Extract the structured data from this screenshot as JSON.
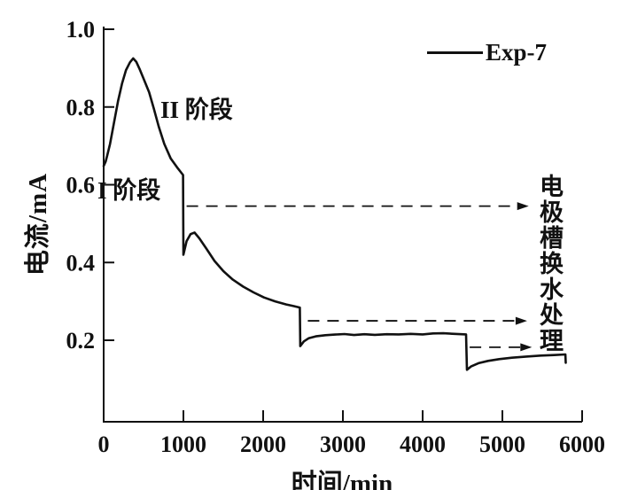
{
  "figure": {
    "background": "#ffffff",
    "ink_color": "#111111",
    "legend": {
      "label": "Exp-7"
    },
    "axes": {
      "xlabel": "时间/min",
      "ylabel": "电流/mA"
    },
    "annotations": {
      "stage1": "I 阶段",
      "stage2": "II 阶段",
      "side_note": "电极槽换水处理"
    }
  },
  "chart_data": {
    "type": "line",
    "title": "",
    "xlabel": "时间/min",
    "ylabel": "电流/mA",
    "xlim": [
      0,
      6000
    ],
    "ylim": [
      0,
      1.0
    ],
    "x_ticks": [
      0,
      1000,
      2000,
      3000,
      4000,
      5000,
      6000
    ],
    "y_ticks": [
      0.2,
      0.4,
      0.6,
      0.8,
      1.0
    ],
    "grid": false,
    "legend_position": "upper-right",
    "series": [
      {
        "name": "Exp-7",
        "color": "#111111",
        "points": [
          [
            0,
            0.648
          ],
          [
            25,
            0.66
          ],
          [
            45,
            0.675
          ],
          [
            80,
            0.705
          ],
          [
            130,
            0.76
          ],
          [
            180,
            0.815
          ],
          [
            230,
            0.86
          ],
          [
            280,
            0.895
          ],
          [
            330,
            0.915
          ],
          [
            370,
            0.925
          ],
          [
            410,
            0.916
          ],
          [
            450,
            0.898
          ],
          [
            510,
            0.868
          ],
          [
            570,
            0.838
          ],
          [
            630,
            0.795
          ],
          [
            690,
            0.75
          ],
          [
            760,
            0.705
          ],
          [
            840,
            0.668
          ],
          [
            920,
            0.645
          ],
          [
            995,
            0.625
          ],
          [
            1000,
            0.42
          ],
          [
            1040,
            0.455
          ],
          [
            1090,
            0.473
          ],
          [
            1140,
            0.477
          ],
          [
            1200,
            0.462
          ],
          [
            1290,
            0.435
          ],
          [
            1390,
            0.404
          ],
          [
            1500,
            0.378
          ],
          [
            1620,
            0.356
          ],
          [
            1750,
            0.338
          ],
          [
            1880,
            0.323
          ],
          [
            2010,
            0.31
          ],
          [
            2150,
            0.3
          ],
          [
            2290,
            0.292
          ],
          [
            2380,
            0.288
          ],
          [
            2460,
            0.284
          ],
          [
            2465,
            0.185
          ],
          [
            2510,
            0.197
          ],
          [
            2570,
            0.205
          ],
          [
            2660,
            0.21
          ],
          [
            2780,
            0.213
          ],
          [
            2900,
            0.2145
          ],
          [
            3020,
            0.216
          ],
          [
            3140,
            0.2135
          ],
          [
            3270,
            0.2155
          ],
          [
            3400,
            0.214
          ],
          [
            3550,
            0.2155
          ],
          [
            3700,
            0.215
          ],
          [
            3850,
            0.2165
          ],
          [
            4000,
            0.215
          ],
          [
            4130,
            0.2175
          ],
          [
            4260,
            0.218
          ],
          [
            4400,
            0.2165
          ],
          [
            4545,
            0.215
          ],
          [
            4555,
            0.124
          ],
          [
            4610,
            0.133
          ],
          [
            4700,
            0.141
          ],
          [
            4820,
            0.147
          ],
          [
            4960,
            0.1515
          ],
          [
            5120,
            0.155
          ],
          [
            5300,
            0.158
          ],
          [
            5480,
            0.1605
          ],
          [
            5650,
            0.162
          ],
          [
            5790,
            0.1635
          ],
          [
            5795,
            0.142
          ]
        ]
      }
    ],
    "stage_annotations": [
      {
        "label": "I 阶段",
        "x": 0,
        "y": 0.6
      },
      {
        "label": "II 阶段",
        "x": 720,
        "y": 0.81
      }
    ],
    "event_arrows": [
      {
        "start": 1040,
        "end": 5330,
        "level": 0.545
      },
      {
        "start": 2560,
        "end": 5310,
        "level": 0.25
      },
      {
        "start": 4590,
        "end": 5370,
        "level": 0.182
      }
    ],
    "side_note": "电极槽换水处理"
  }
}
